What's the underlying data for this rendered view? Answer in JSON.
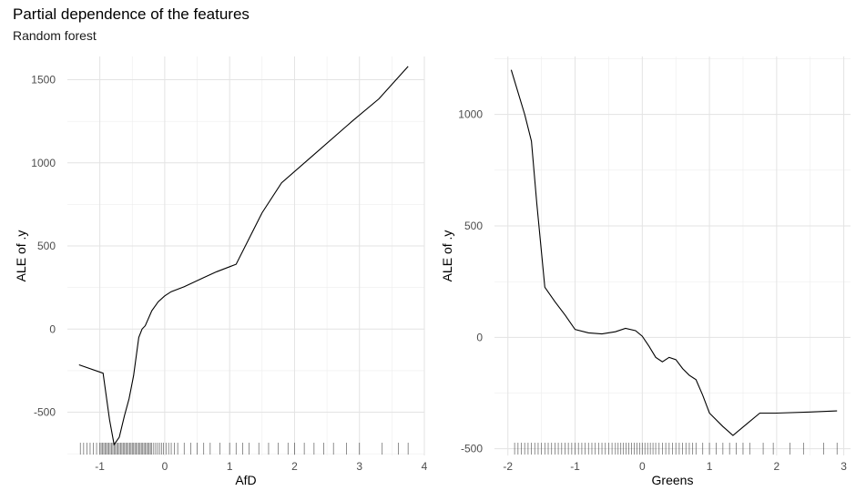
{
  "title": "Partial dependence of the features",
  "subtitle": "Random forest",
  "chart_data": [
    {
      "type": "line",
      "xlabel": "AfD",
      "ylabel": "ALE of .y",
      "xlim": [
        -1.5,
        4.0
      ],
      "ylim": [
        -760,
        1640
      ],
      "x_ticks": [
        -1,
        0,
        1,
        2,
        3,
        4
      ],
      "x_tick_labels": [
        "-1",
        "0",
        "1",
        "2",
        "3",
        "4"
      ],
      "y_ticks": [
        -500,
        0,
        500,
        1000,
        1500
      ],
      "y_tick_labels": [
        "-500",
        "0",
        "500",
        "1000",
        "1500"
      ],
      "grid": true,
      "series": [
        {
          "x": [
            -1.32,
            -0.95,
            -0.85,
            -0.78,
            -0.7,
            -0.62,
            -0.55,
            -0.48,
            -0.4,
            -0.35,
            -0.3,
            -0.2,
            -0.1,
            0.0,
            0.1,
            0.3,
            0.6,
            0.8,
            1.1,
            1.5,
            1.8,
            2.3,
            2.9,
            3.3,
            3.75
          ],
          "y": [
            -215,
            -265,
            -545,
            -695,
            -650,
            -520,
            -420,
            -280,
            -50,
            0,
            20,
            110,
            165,
            200,
            225,
            255,
            310,
            345,
            390,
            700,
            880,
            1050,
            1255,
            1385,
            1580
          ]
        }
      ],
      "rug_x": [
        -1.3,
        -1.25,
        -1.2,
        -1.15,
        -1.1,
        -1.05,
        -1.0,
        -0.98,
        -0.96,
        -0.94,
        -0.92,
        -0.9,
        -0.88,
        -0.86,
        -0.84,
        -0.82,
        -0.8,
        -0.78,
        -0.76,
        -0.74,
        -0.72,
        -0.7,
        -0.68,
        -0.66,
        -0.64,
        -0.62,
        -0.6,
        -0.58,
        -0.56,
        -0.54,
        -0.52,
        -0.5,
        -0.48,
        -0.46,
        -0.44,
        -0.42,
        -0.4,
        -0.38,
        -0.36,
        -0.34,
        -0.32,
        -0.3,
        -0.28,
        -0.26,
        -0.24,
        -0.22,
        -0.2,
        -0.17,
        -0.14,
        -0.11,
        -0.08,
        -0.05,
        -0.02,
        0.02,
        0.06,
        0.1,
        0.15,
        0.2,
        0.3,
        0.4,
        0.5,
        0.6,
        0.7,
        0.85,
        1.0,
        1.1,
        1.2,
        1.3,
        1.45,
        1.6,
        1.75,
        1.9,
        2.0,
        2.15,
        2.3,
        2.45,
        2.6,
        2.8,
        3.0,
        3.35,
        3.6,
        3.75
      ]
    },
    {
      "type": "line",
      "xlabel": "Greens",
      "ylabel": "ALE of .y",
      "xlim": [
        -2.2,
        3.1
      ],
      "ylim": [
        -530,
        1260
      ],
      "x_ticks": [
        -2,
        -1,
        0,
        1,
        2,
        3
      ],
      "x_tick_labels": [
        "-2",
        "-1",
        "0",
        "1",
        "2",
        "3"
      ],
      "y_ticks": [
        -500,
        0,
        500,
        1000
      ],
      "y_tick_labels": [
        "-500",
        "0",
        "500",
        "1000"
      ],
      "grid": true,
      "series": [
        {
          "x": [
            -1.95,
            -1.75,
            -1.65,
            -1.57,
            -1.45,
            -1.3,
            -1.15,
            -1.0,
            -0.8,
            -0.6,
            -0.4,
            -0.25,
            -0.1,
            0.0,
            0.1,
            0.2,
            0.3,
            0.4,
            0.5,
            0.6,
            0.7,
            0.8,
            0.9,
            1.0,
            1.2,
            1.35,
            1.55,
            1.75,
            2.0,
            2.5,
            2.9
          ],
          "y": [
            1200,
            1000,
            880,
            600,
            225,
            160,
            100,
            35,
            20,
            15,
            25,
            40,
            30,
            5,
            -40,
            -90,
            -110,
            -90,
            -100,
            -140,
            -170,
            -190,
            -260,
            -340,
            -400,
            -440,
            -390,
            -340,
            -340,
            -335,
            -330
          ]
        }
      ],
      "rug_x": [
        -1.9,
        -1.85,
        -1.8,
        -1.75,
        -1.7,
        -1.65,
        -1.6,
        -1.55,
        -1.5,
        -1.45,
        -1.4,
        -1.35,
        -1.3,
        -1.25,
        -1.2,
        -1.15,
        -1.1,
        -1.05,
        -1.0,
        -0.95,
        -0.9,
        -0.85,
        -0.8,
        -0.75,
        -0.7,
        -0.65,
        -0.6,
        -0.55,
        -0.5,
        -0.45,
        -0.4,
        -0.36,
        -0.32,
        -0.28,
        -0.24,
        -0.2,
        -0.16,
        -0.12,
        -0.08,
        -0.04,
        0.0,
        0.04,
        0.08,
        0.12,
        0.16,
        0.2,
        0.25,
        0.3,
        0.35,
        0.4,
        0.45,
        0.5,
        0.55,
        0.6,
        0.65,
        0.7,
        0.75,
        0.8,
        0.9,
        1.0,
        1.1,
        1.2,
        1.3,
        1.4,
        1.5,
        1.6,
        1.8,
        1.95,
        2.2,
        2.4,
        2.7,
        2.9
      ]
    }
  ]
}
